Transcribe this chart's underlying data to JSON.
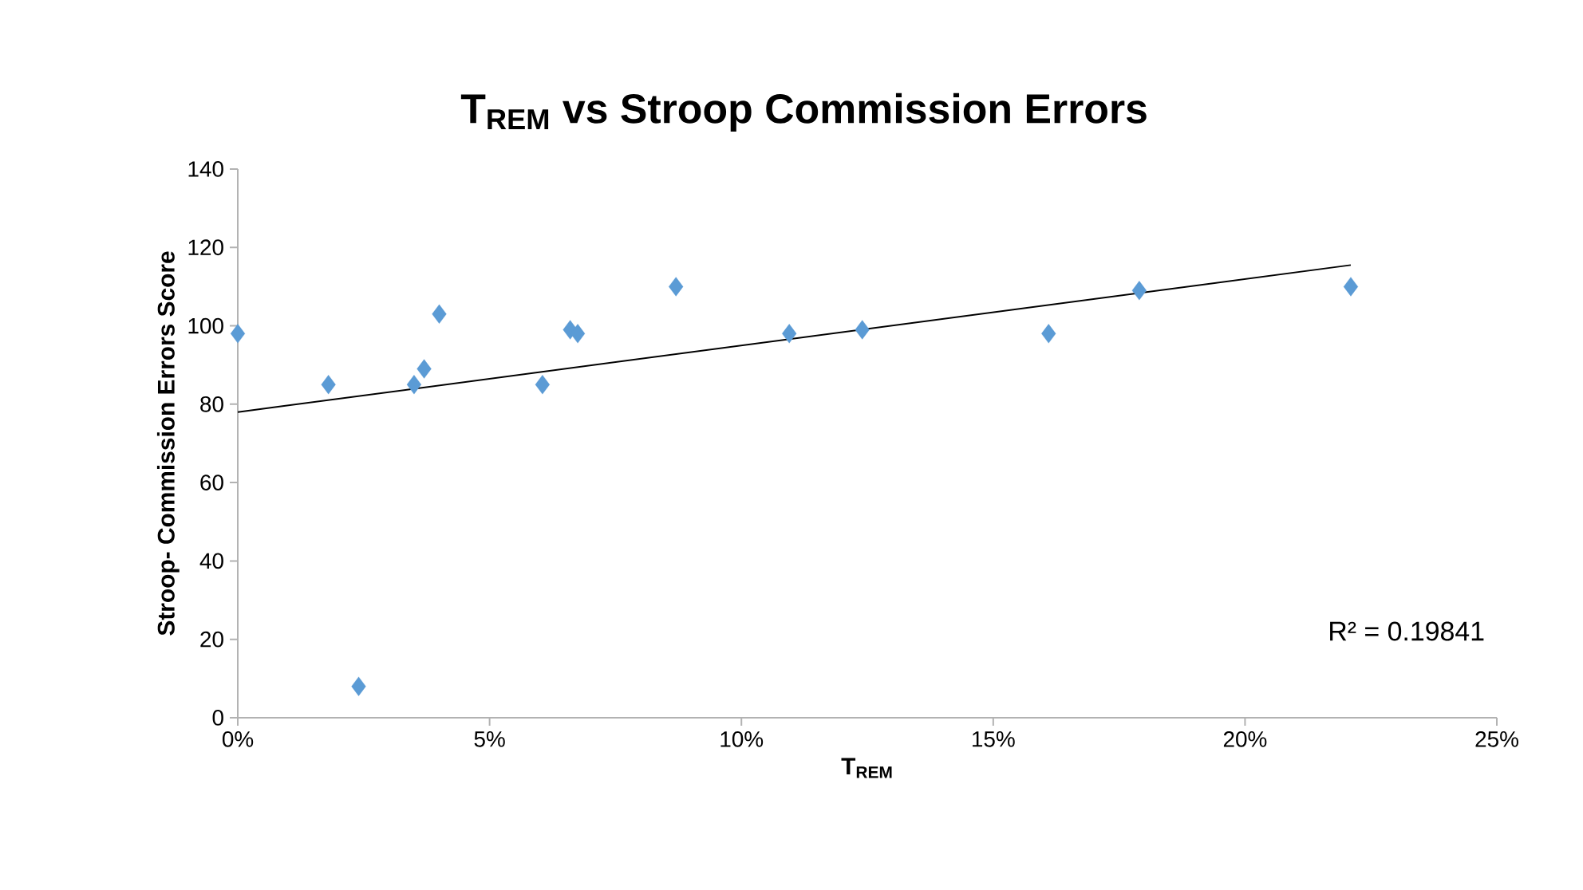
{
  "chart_data": {
    "type": "scatter",
    "title": "T$_{REM}$ vs Stroop Commission Errors",
    "xlabel": "T$_{REM}$",
    "ylabel": "Stroop- Commission Errors Score",
    "x": [
      0.0,
      0.018,
      0.024,
      0.035,
      0.037,
      0.04,
      0.0605,
      0.066,
      0.0675,
      0.087,
      0.1095,
      0.124,
      0.161,
      0.179,
      0.221
    ],
    "series": [
      {
        "color": "#5b9bd5",
        "marker": "diamond",
        "values": [
          98,
          85,
          8,
          85,
          89,
          103,
          85,
          99,
          98,
          110,
          98,
          99,
          98,
          109,
          110
        ]
      },
      {
        "type": "line",
        "color": "#000000",
        "marker": "none",
        "x": [
          0.0,
          0.221
        ],
        "values": [
          78,
          115.5
        ]
      }
    ],
    "xlim": [
      0,
      0.25
    ],
    "xticks": [
      {
        "value": 0,
        "label": "0%"
      },
      {
        "value": 0.05,
        "label": "5%"
      },
      {
        "value": 0.1,
        "label": "10%"
      },
      {
        "value": 0.15,
        "label": "15%"
      },
      {
        "value": 0.2,
        "label": "20%"
      },
      {
        "value": 0.25,
        "label": "25%"
      }
    ],
    "ylim": [
      0,
      140
    ],
    "yticks": [
      0,
      20,
      40,
      60,
      80,
      100,
      120,
      140
    ],
    "annotations": [
      "R² = 0.19841"
    ]
  }
}
